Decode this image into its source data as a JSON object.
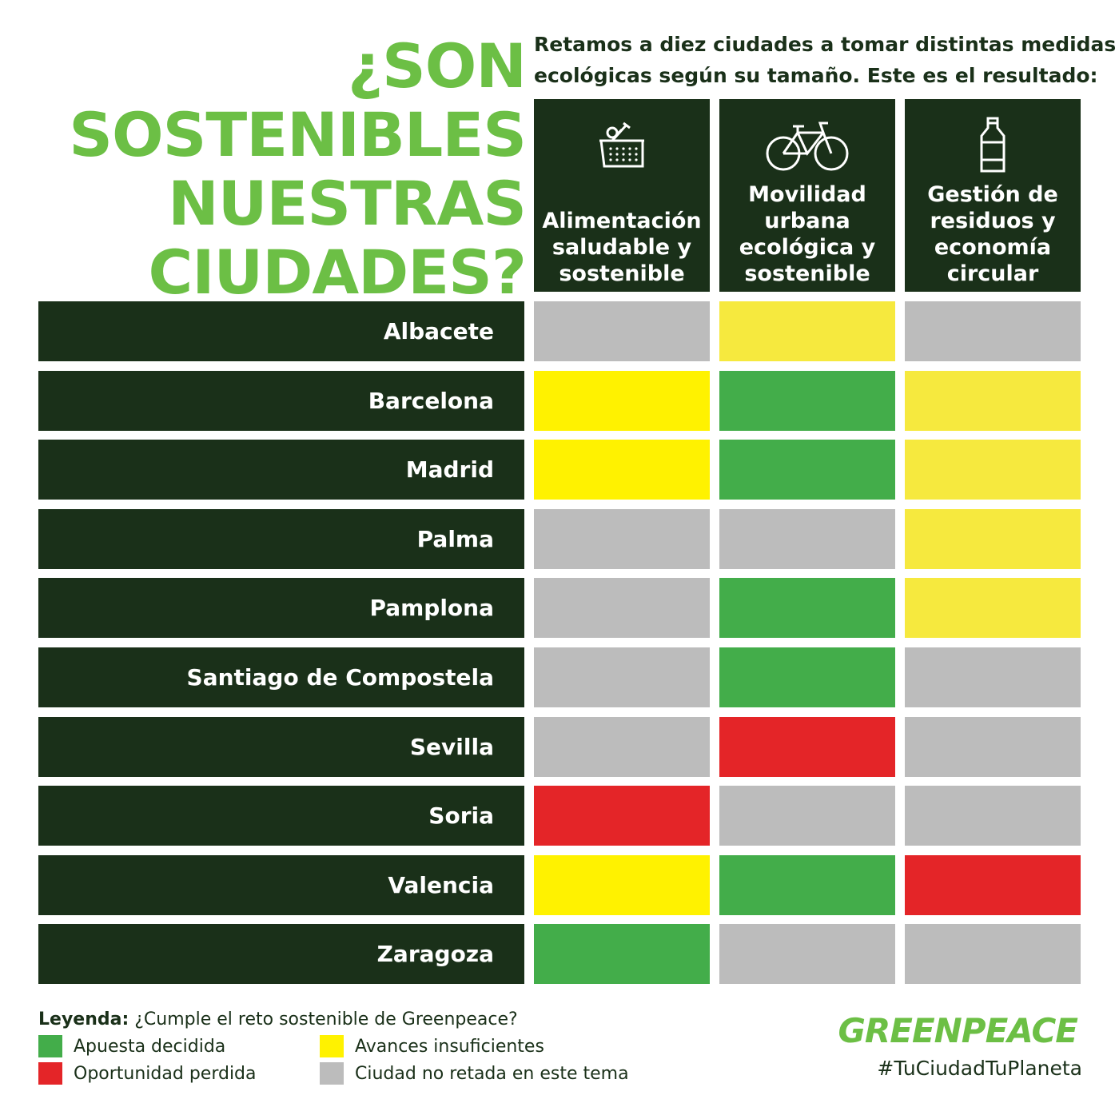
{
  "title": {
    "line1": "¿SON",
    "line2": "SOSTENIBLES",
    "line3": "NUESTRAS",
    "line4": "CIUDADES?"
  },
  "intro": {
    "line1": "Retamos a diez ciudades a tomar distintas medidas",
    "line2": "ecológicas según su tamaño. Este es el resultado:"
  },
  "columns": [
    {
      "icon": "food-basket-icon",
      "lines": [
        "",
        "Alimentación",
        "saludable y",
        "sostenible"
      ]
    },
    {
      "icon": "bicycle-icon",
      "lines": [
        "Movilidad",
        "urbana",
        "ecológica y",
        "sostenible"
      ]
    },
    {
      "icon": "bottle-icon",
      "lines": [
        "Gestión de",
        "residuos y",
        "economía",
        "circular"
      ]
    }
  ],
  "status_colors": {
    "apuesta": "#43ad4a",
    "avances": "#f6e93e",
    "oportunidad": "#e42528",
    "no_retada": "#bcbcbc"
  },
  "rows": [
    {
      "city": "Albacete",
      "status": [
        "no_retada",
        "avances",
        "no_retada"
      ]
    },
    {
      "city": "Barcelona",
      "status": [
        "avances",
        "apuesta",
        "avances"
      ]
    },
    {
      "city": "Madrid",
      "status": [
        "avances",
        "apuesta",
        "avances"
      ]
    },
    {
      "city": "Palma",
      "status": [
        "no_retada",
        "no_retada",
        "avances"
      ]
    },
    {
      "city": "Pamplona",
      "status": [
        "no_retada",
        "apuesta",
        "avances"
      ]
    },
    {
      "city": "Santiago de Compostela",
      "status": [
        "no_retada",
        "apuesta",
        "no_retada"
      ]
    },
    {
      "city": "Sevilla",
      "status": [
        "no_retada",
        "oportunidad",
        "no_retada"
      ]
    },
    {
      "city": "Soria",
      "status": [
        "oportunidad",
        "no_retada",
        "no_retada"
      ]
    },
    {
      "city": "Valencia",
      "status": [
        "avances",
        "apuesta",
        "oportunidad"
      ]
    },
    {
      "city": "Zaragoza",
      "status": [
        "apuesta",
        "no_retada",
        "no_retada"
      ]
    }
  ],
  "legend": {
    "title_bold": "Leyenda:",
    "title_rest": " ¿Cumple el reto sostenible de Greenpeace?",
    "apuesta": "Apuesta decidida",
    "avances": "Avances insuficientes",
    "oportunidad": "Oportunidad perdida",
    "no_retada": "Ciudad no retada en este tema"
  },
  "brand": {
    "logo": "GREENPEACE",
    "hashtag": "#TuCiudadTuPlaneta"
  }
}
